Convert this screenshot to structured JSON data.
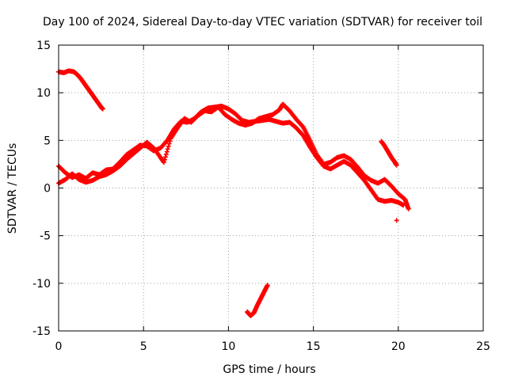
{
  "chart_data": {
    "type": "scatter",
    "title": "Day 100 of 2024, Sidereal Day-to-day VTEC variation (SDTVAR) for receiver toil",
    "xlabel": "GPS time / hours",
    "ylabel": "SDTVAR / TECUs",
    "xlim": [
      0,
      25
    ],
    "ylim": [
      -15,
      15
    ],
    "xticks": [
      0,
      5,
      10,
      15,
      20,
      25
    ],
    "yticks": [
      -15,
      -10,
      -5,
      0,
      5,
      10,
      15
    ],
    "x_tick_labels": [
      "0",
      "5",
      "10",
      "15",
      "20",
      "25"
    ],
    "y_tick_labels": [
      "-15",
      "-10",
      "-5",
      "0",
      "5",
      "10",
      "15"
    ],
    "grid": true,
    "marker": "+",
    "color": "#ff0000",
    "series": [
      {
        "name": "main-trace-a",
        "points": [
          [
            0.0,
            2.3
          ],
          [
            0.4,
            1.6
          ],
          [
            0.8,
            1.1
          ],
          [
            1.2,
            1.4
          ],
          [
            1.6,
            1.0
          ],
          [
            2.0,
            1.6
          ],
          [
            2.4,
            1.4
          ],
          [
            2.8,
            1.9
          ],
          [
            3.2,
            2.0
          ],
          [
            3.6,
            2.7
          ],
          [
            4.0,
            3.5
          ],
          [
            4.4,
            4.0
          ],
          [
            4.8,
            4.5
          ],
          [
            5.2,
            4.4
          ],
          [
            5.6,
            3.9
          ],
          [
            6.0,
            4.2
          ],
          [
            6.4,
            5.0
          ],
          [
            6.8,
            6.2
          ],
          [
            7.2,
            7.0
          ],
          [
            7.6,
            6.9
          ],
          [
            8.0,
            7.3
          ],
          [
            8.4,
            8.0
          ],
          [
            8.8,
            8.4
          ],
          [
            9.2,
            8.5
          ],
          [
            9.6,
            8.6
          ],
          [
            10.0,
            8.3
          ],
          [
            10.4,
            7.8
          ],
          [
            10.8,
            7.1
          ],
          [
            11.2,
            6.9
          ],
          [
            11.6,
            7.0
          ],
          [
            12.0,
            7.1
          ],
          [
            12.4,
            7.2
          ],
          [
            12.8,
            7.0
          ],
          [
            13.2,
            6.8
          ],
          [
            13.6,
            6.9
          ],
          [
            14.0,
            6.3
          ],
          [
            14.4,
            5.5
          ],
          [
            14.8,
            4.3
          ],
          [
            15.2,
            3.2
          ],
          [
            15.6,
            2.3
          ],
          [
            16.0,
            2.0
          ],
          [
            16.4,
            2.4
          ],
          [
            16.8,
            2.8
          ],
          [
            17.2,
            2.4
          ],
          [
            17.6,
            1.6
          ],
          [
            18.0,
            0.8
          ],
          [
            18.4,
            -0.2
          ],
          [
            18.8,
            -1.2
          ],
          [
            19.2,
            -1.4
          ],
          [
            19.6,
            -1.3
          ],
          [
            20.0,
            -1.5
          ],
          [
            20.3,
            -1.8
          ]
        ]
      },
      {
        "name": "main-trace-b",
        "points": [
          [
            0.0,
            0.5
          ],
          [
            0.4,
            0.9
          ],
          [
            0.8,
            1.5
          ],
          [
            1.2,
            0.9
          ],
          [
            1.6,
            0.6
          ],
          [
            2.0,
            0.8
          ],
          [
            2.4,
            1.2
          ],
          [
            2.8,
            1.4
          ],
          [
            3.2,
            1.8
          ],
          [
            3.6,
            2.3
          ],
          [
            4.0,
            3.0
          ],
          [
            4.4,
            3.6
          ],
          [
            4.8,
            4.2
          ],
          [
            5.2,
            4.8
          ],
          [
            5.6,
            4.2
          ],
          [
            6.0,
            3.2
          ],
          [
            6.2,
            2.7
          ],
          [
            6.6,
            5.2
          ],
          [
            7.0,
            6.3
          ],
          [
            7.4,
            7.3
          ],
          [
            7.8,
            6.9
          ],
          [
            8.2,
            7.6
          ],
          [
            8.6,
            8.1
          ],
          [
            9.0,
            8.0
          ],
          [
            9.4,
            8.5
          ],
          [
            9.8,
            7.7
          ],
          [
            10.2,
            7.2
          ],
          [
            10.6,
            6.8
          ],
          [
            11.0,
            6.6
          ],
          [
            11.4,
            6.8
          ],
          [
            11.8,
            7.3
          ],
          [
            12.2,
            7.5
          ],
          [
            12.6,
            7.7
          ],
          [
            13.0,
            8.2
          ],
          [
            13.2,
            8.8
          ],
          [
            13.6,
            8.1
          ],
          [
            14.0,
            7.2
          ],
          [
            14.4,
            6.4
          ],
          [
            14.8,
            5.0
          ],
          [
            15.2,
            3.5
          ],
          [
            15.6,
            2.5
          ],
          [
            16.0,
            2.7
          ],
          [
            16.4,
            3.2
          ],
          [
            16.8,
            3.4
          ],
          [
            17.2,
            3.0
          ],
          [
            17.6,
            2.2
          ],
          [
            18.0,
            1.3
          ],
          [
            18.4,
            0.8
          ],
          [
            18.8,
            0.5
          ],
          [
            19.2,
            0.9
          ],
          [
            19.6,
            0.2
          ],
          [
            20.0,
            -0.6
          ],
          [
            20.4,
            -1.2
          ],
          [
            20.6,
            -2.2
          ]
        ]
      },
      {
        "name": "early-segment",
        "points": [
          [
            0.0,
            12.2
          ],
          [
            0.3,
            12.1
          ],
          [
            0.6,
            12.3
          ],
          [
            0.9,
            12.2
          ],
          [
            1.1,
            11.9
          ],
          [
            1.3,
            11.5
          ],
          [
            1.5,
            11.0
          ],
          [
            1.7,
            10.5
          ],
          [
            1.9,
            10.0
          ],
          [
            2.1,
            9.5
          ],
          [
            2.3,
            9.0
          ],
          [
            2.5,
            8.5
          ],
          [
            2.6,
            8.3
          ]
        ]
      },
      {
        "name": "low-segment",
        "points": [
          [
            11.1,
            -13.0
          ],
          [
            11.3,
            -13.4
          ],
          [
            11.5,
            -13.1
          ],
          [
            11.7,
            -12.3
          ],
          [
            11.9,
            -11.6
          ],
          [
            12.1,
            -10.9
          ],
          [
            12.3,
            -10.2
          ]
        ]
      },
      {
        "name": "late-segment",
        "points": [
          [
            19.0,
            4.9
          ],
          [
            19.2,
            4.4
          ],
          [
            19.4,
            3.8
          ],
          [
            19.6,
            3.2
          ],
          [
            19.8,
            2.7
          ],
          [
            19.9,
            2.4
          ]
        ]
      },
      {
        "name": "outlier",
        "points": [
          [
            19.9,
            -3.4
          ]
        ]
      }
    ]
  }
}
